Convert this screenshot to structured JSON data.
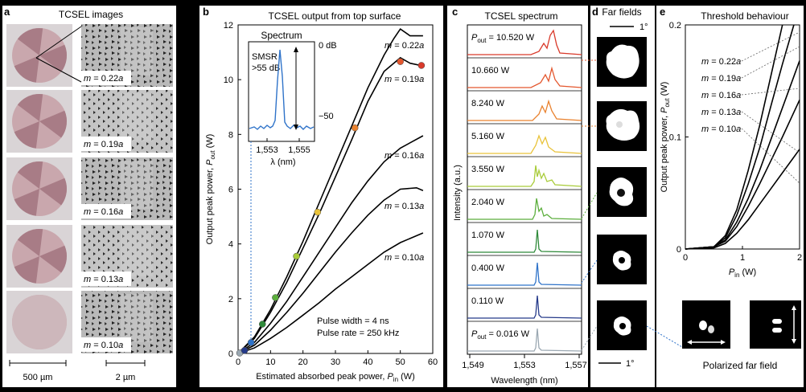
{
  "panels": {
    "a": {
      "letter": "a",
      "title": "TCSEL images",
      "rows": [
        {
          "label": "m = 0.22a",
          "m": "0.22",
          "sectors": 6
        },
        {
          "label": "m = 0.19a",
          "m": "0.19",
          "sectors": 6
        },
        {
          "label": "m = 0.16a",
          "m": "0.16",
          "sectors": 6
        },
        {
          "label": "m = 0.13a",
          "m": "0.13",
          "sectors": 6
        },
        {
          "label": "m = 0.10a",
          "m": "0.10",
          "sectors": 0
        }
      ],
      "scale_left": "500 µm",
      "scale_right": "2 µm"
    },
    "b": {
      "letter": "b",
      "title": "TCSEL output from top surface",
      "inset": {
        "title": "Spectrum",
        "smsr_line1": "SMSR",
        "smsr_line2": ">55 dB",
        "db0": "0 dB",
        "db50": "−50",
        "xticks": [
          "1,553",
          "1,555"
        ],
        "xlabel": "λ (nm)"
      },
      "notes": [
        "Pulse width = 4 ns",
        "Pulse rate = 250 kHz"
      ]
    },
    "c": {
      "letter": "c",
      "title": "TCSEL spectrum",
      "ylabel": "Intensity (a.u.)",
      "xlabel": "Wavelength (nm)",
      "xticks": [
        "1,549",
        "1,553",
        "1,557"
      ],
      "rows": [
        {
          "label": "P",
          "sub": "out",
          "rest": " = 10.520 W",
          "color": "#d93a2b"
        },
        {
          "label": "10.660 W",
          "color": "#e4572e"
        },
        {
          "label": "8.240 W",
          "color": "#e9822f"
        },
        {
          "label": "5.160 W",
          "color": "#e9c33a"
        },
        {
          "label": "3.550 W",
          "color": "#a9cc3a"
        },
        {
          "label": "2.040 W",
          "color": "#5bae3c"
        },
        {
          "label": "1.070 W",
          "color": "#2f8a3a"
        },
        {
          "label": "0.400 W",
          "color": "#2f73c9"
        },
        {
          "label": "0.110 W",
          "color": "#253a8a"
        },
        {
          "label": "P",
          "sub": "out",
          "rest": " = 0.016 W",
          "color": "#9ba8b2"
        }
      ]
    },
    "d": {
      "letter": "d",
      "title": "Far fields",
      "scale_top": "1°",
      "scale_bottom": "1°"
    },
    "e": {
      "letter": "e",
      "title": "Threshold behaviour",
      "polarized": "Polarized far field"
    }
  },
  "chart_data": [
    {
      "type": "line",
      "panel": "b",
      "title": "TCSEL output from top surface",
      "xlabel": "Estimated absorbed peak power, P_in (W)",
      "ylabel": "Output peak power, P_out (W)",
      "xlim": [
        0,
        60
      ],
      "ylim": [
        0,
        12
      ],
      "xticks": [
        0,
        10,
        20,
        30,
        40,
        50,
        60
      ],
      "yticks": [
        0,
        2,
        4,
        6,
        8,
        10,
        12
      ],
      "series": [
        {
          "name": "m = 0.22a",
          "x": [
            0,
            5,
            10,
            15,
            20,
            25,
            30,
            35,
            40,
            45,
            48,
            50,
            53,
            57
          ],
          "y": [
            0,
            0.6,
            1.6,
            2.8,
            4.1,
            5.5,
            6.9,
            8.3,
            9.7,
            10.9,
            11.5,
            11.85,
            11.6,
            11.6
          ]
        },
        {
          "name": "m = 0.19a",
          "x": [
            0,
            5,
            10,
            15,
            20,
            25,
            30,
            35,
            40,
            45,
            50,
            53,
            57
          ],
          "y": [
            0,
            0.55,
            1.5,
            2.6,
            3.85,
            5.1,
            6.45,
            7.8,
            9.2,
            10.3,
            10.8,
            10.6,
            10.5
          ]
        },
        {
          "name": "m = 0.16a",
          "x": [
            0,
            5,
            10,
            15,
            20,
            25,
            30,
            35,
            40,
            45,
            50,
            57
          ],
          "y": [
            0,
            0.4,
            1.1,
            1.9,
            2.8,
            3.7,
            4.6,
            5.5,
            6.3,
            7.0,
            7.5,
            7.95
          ]
        },
        {
          "name": "m = 0.13a",
          "x": [
            0,
            5,
            10,
            15,
            20,
            25,
            30,
            35,
            40,
            45,
            50,
            55,
            57
          ],
          "y": [
            0,
            0.3,
            0.85,
            1.5,
            2.2,
            2.95,
            3.7,
            4.4,
            5.05,
            5.6,
            6.0,
            6.05,
            5.95
          ]
        },
        {
          "name": "m = 0.10a",
          "x": [
            0,
            5,
            10,
            15,
            20,
            25,
            30,
            35,
            40,
            45,
            50,
            57
          ],
          "y": [
            0,
            0.2,
            0.55,
            0.95,
            1.4,
            1.85,
            2.35,
            2.8,
            3.25,
            3.7,
            4.05,
            4.4
          ]
        }
      ],
      "markers": [
        {
          "x": 0.5,
          "y": 0.016,
          "color": "#9ba8b2"
        },
        {
          "x": 2,
          "y": 0.11,
          "color": "#253a8a"
        },
        {
          "x": 4,
          "y": 0.4,
          "color": "#2f73c9"
        },
        {
          "x": 7.5,
          "y": 1.07,
          "color": "#2f8a3a"
        },
        {
          "x": 11.5,
          "y": 2.04,
          "color": "#5bae3c"
        },
        {
          "x": 18,
          "y": 3.55,
          "color": "#a9cc3a"
        },
        {
          "x": 24.5,
          "y": 5.16,
          "color": "#e9c33a"
        },
        {
          "x": 36,
          "y": 8.24,
          "color": "#e9822f"
        },
        {
          "x": 50,
          "y": 10.66,
          "color": "#e4572e"
        },
        {
          "x": 56.5,
          "y": 10.52,
          "color": "#d93a2b"
        }
      ]
    },
    {
      "type": "line",
      "panel": "e",
      "title": "Threshold behaviour",
      "xlabel": "P_in (W)",
      "ylabel": "Output peak power, P_out (W)",
      "xlim": [
        0,
        2
      ],
      "ylim": [
        0,
        0.2
      ],
      "xticks": [
        0,
        1,
        2
      ],
      "yticks": [
        0,
        0.1,
        0.2
      ],
      "series": [
        {
          "name": "m = 0.22a",
          "x": [
            0,
            0.5,
            0.7,
            0.9,
            1.1,
            1.3,
            1.5,
            1.7
          ],
          "y": [
            0,
            0.002,
            0.012,
            0.035,
            0.07,
            0.11,
            0.155,
            0.2
          ]
        },
        {
          "name": "m = 0.19a",
          "x": [
            0,
            0.5,
            0.7,
            0.9,
            1.1,
            1.3,
            1.5,
            1.7,
            1.9
          ],
          "y": [
            0,
            0.002,
            0.01,
            0.03,
            0.058,
            0.09,
            0.128,
            0.165,
            0.2
          ]
        },
        {
          "name": "m = 0.16a",
          "x": [
            0,
            0.5,
            0.7,
            0.9,
            1.1,
            1.3,
            1.5,
            1.7,
            1.9,
            2.0
          ],
          "y": [
            0,
            0.002,
            0.008,
            0.024,
            0.045,
            0.07,
            0.098,
            0.126,
            0.154,
            0.168
          ]
        },
        {
          "name": "m = 0.13a",
          "x": [
            0,
            0.5,
            0.7,
            0.9,
            1.1,
            1.3,
            1.5,
            1.7,
            1.9,
            2.0
          ],
          "y": [
            0,
            0.002,
            0.007,
            0.02,
            0.038,
            0.058,
            0.079,
            0.1,
            0.122,
            0.133
          ]
        },
        {
          "name": "m = 0.10a",
          "x": [
            0,
            0.5,
            0.7,
            0.9,
            1.1,
            1.3,
            1.5,
            1.7,
            1.9,
            2.0
          ],
          "y": [
            0,
            0.001,
            0.005,
            0.014,
            0.026,
            0.04,
            0.054,
            0.068,
            0.082,
            0.089
          ]
        }
      ]
    }
  ]
}
